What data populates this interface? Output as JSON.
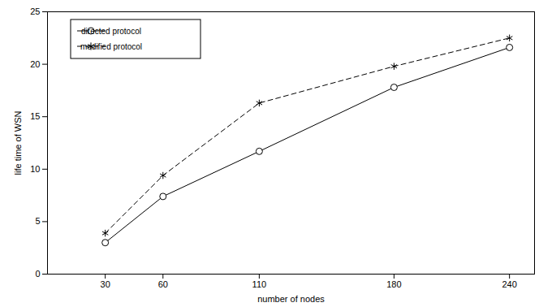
{
  "chart_data": {
    "type": "line",
    "x_label": "number of nodes",
    "y_label": "life time of WSN",
    "x": [
      30,
      60,
      110,
      180,
      240
    ],
    "series": [
      {
        "name": "directed protocol",
        "color": "#000000",
        "marker": "circle",
        "line_style": "solid",
        "values": [
          3.0,
          7.4,
          11.7,
          17.8,
          21.6
        ]
      },
      {
        "name": "modified protocol",
        "color": "#000000",
        "marker": "asterisk",
        "line_style": "dashed",
        "values": [
          3.9,
          9.4,
          16.3,
          19.8,
          22.5
        ]
      }
    ],
    "xlim": [
      0,
      253
    ],
    "xticks": [
      30,
      60,
      110,
      180,
      240
    ],
    "ylim": [
      0,
      25
    ],
    "yticks": [
      0,
      5,
      10,
      15,
      20,
      25
    ],
    "grid": false,
    "legend": "top-left"
  }
}
